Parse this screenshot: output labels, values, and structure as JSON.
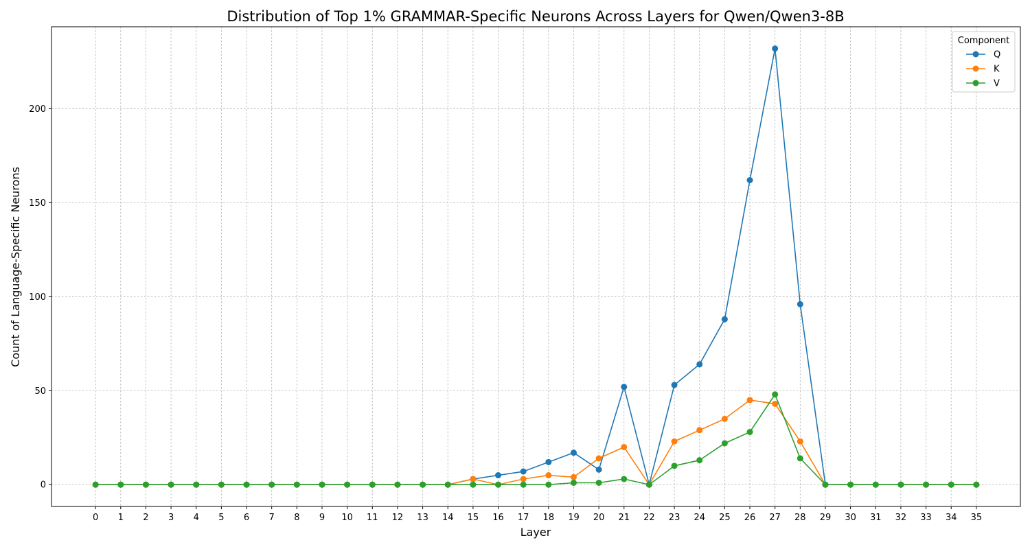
{
  "chart_data": {
    "type": "line",
    "title": "Distribution of Top 1% GRAMMAR-Specific Neurons Across Layers for Qwen/Qwen3-8B",
    "xlabel": "Layer",
    "ylabel": "Count of Language-Specific Neurons",
    "x": [
      0,
      1,
      2,
      3,
      4,
      5,
      6,
      7,
      8,
      9,
      10,
      11,
      12,
      13,
      14,
      15,
      16,
      17,
      18,
      19,
      20,
      21,
      22,
      23,
      24,
      25,
      26,
      27,
      28,
      29,
      30,
      31,
      32,
      33,
      34,
      35
    ],
    "xlim": [
      -1.75,
      36.75
    ],
    "ylim": [
      -11.6,
      243.6
    ],
    "yticks": [
      0,
      50,
      100,
      150,
      200
    ],
    "grid": true,
    "legend": {
      "title": "Component",
      "placement": "top-right"
    },
    "series": [
      {
        "name": "Q",
        "color": "#1f77b4",
        "values": [
          0,
          0,
          0,
          0,
          0,
          0,
          0,
          0,
          0,
          0,
          0,
          0,
          0,
          0,
          0,
          3,
          5,
          7,
          12,
          17,
          8,
          52,
          0,
          53,
          64,
          88,
          162,
          232,
          96,
          0,
          0,
          0,
          0,
          0,
          0,
          0
        ]
      },
      {
        "name": "K",
        "color": "#ff7f0e",
        "values": [
          0,
          0,
          0,
          0,
          0,
          0,
          0,
          0,
          0,
          0,
          0,
          0,
          0,
          0,
          0,
          3,
          0,
          3,
          5,
          4,
          14,
          20,
          0,
          23,
          29,
          35,
          45,
          43,
          23,
          0,
          0,
          0,
          0,
          0,
          0,
          0
        ]
      },
      {
        "name": "V",
        "color": "#2ca02c",
        "values": [
          0,
          0,
          0,
          0,
          0,
          0,
          0,
          0,
          0,
          0,
          0,
          0,
          0,
          0,
          0,
          0,
          0,
          0,
          0,
          1,
          1,
          3,
          0,
          10,
          13,
          22,
          28,
          48,
          14,
          0,
          0,
          0,
          0,
          0,
          0,
          0
        ]
      }
    ]
  }
}
